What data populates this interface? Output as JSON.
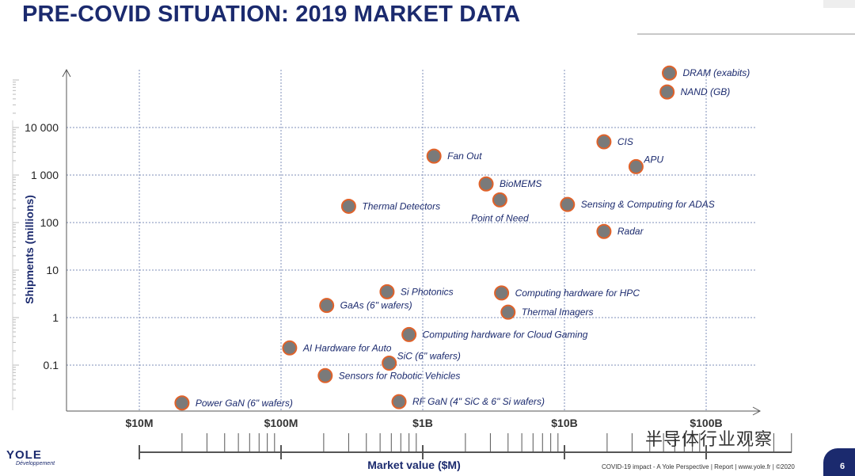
{
  "title": "PRE-COVID SITUATION: 2019 MARKET DATA",
  "footer": "COVID-19 impact - A Yole Perspective | Report | www.yole.fr | ©2020",
  "page_number": "6",
  "logo": {
    "name": "YOLE",
    "sub": "Développement"
  },
  "watermark": "半导体行业观察",
  "colors": {
    "title": "#1b2a6e",
    "marker_fill": "#7a7a7a",
    "marker_stroke": "#e0622a",
    "grid": "#7f8fb8"
  },
  "chart_data": {
    "type": "scatter",
    "x_scale": "log",
    "y_scale": "log",
    "xlabel": "Market value ($M)",
    "ylabel": "Shipments (millions)",
    "x_ticks": [
      {
        "value": 10,
        "label": "$10M"
      },
      {
        "value": 100,
        "label": "$100M"
      },
      {
        "value": 1000,
        "label": "$1B"
      },
      {
        "value": 10000,
        "label": "$10B"
      },
      {
        "value": 100000,
        "label": "$100B"
      }
    ],
    "y_ticks": [
      {
        "value": 0.1,
        "label": "0.1"
      },
      {
        "value": 1,
        "label": "1"
      },
      {
        "value": 10,
        "label": "10"
      },
      {
        "value": 100,
        "label": "100"
      },
      {
        "value": 1000,
        "label": "1 000"
      },
      {
        "value": 10000,
        "label": "10 000"
      }
    ],
    "points": [
      {
        "label": "DRAM (exabits)",
        "x": 55000,
        "y": 140000,
        "label_pos": "right"
      },
      {
        "label": "NAND (GB)",
        "x": 53000,
        "y": 56000,
        "label_pos": "right"
      },
      {
        "label": "CIS",
        "x": 19000,
        "y": 5000,
        "label_pos": "right"
      },
      {
        "label": "APU",
        "x": 32000,
        "y": 1500,
        "label_pos": "upright"
      },
      {
        "label": "Fan Out",
        "x": 1200,
        "y": 2500,
        "label_pos": "right"
      },
      {
        "label": "BioMEMS",
        "x": 2800,
        "y": 650,
        "label_pos": "right"
      },
      {
        "label": "Point of Need",
        "x": 3500,
        "y": 300,
        "label_pos": "below"
      },
      {
        "label": "Sensing & Computing for ADAS",
        "x": 10500,
        "y": 240,
        "label_pos": "right"
      },
      {
        "label": "Radar",
        "x": 19000,
        "y": 65,
        "label_pos": "right"
      },
      {
        "label": "Thermal Detectors",
        "x": 300,
        "y": 220,
        "label_pos": "right"
      },
      {
        "label": "Si Photonics",
        "x": 560,
        "y": 3.5,
        "label_pos": "right"
      },
      {
        "label": "GaAs (6\" wafers)",
        "x": 210,
        "y": 1.8,
        "label_pos": "right"
      },
      {
        "label": "Computing hardware for HPC",
        "x": 3600,
        "y": 3.3,
        "label_pos": "right"
      },
      {
        "label": "Thermal Imagers",
        "x": 4000,
        "y": 1.3,
        "label_pos": "right"
      },
      {
        "label": "Computing hardware for Cloud Gaming",
        "x": 800,
        "y": 0.44,
        "label_pos": "right"
      },
      {
        "label": "AI Hardware for Auto",
        "x": 115,
        "y": 0.23,
        "label_pos": "right"
      },
      {
        "label": "SiC (6\" wafers)",
        "x": 580,
        "y": 0.11,
        "label_pos": "upright"
      },
      {
        "label": "Sensors for Robotic Vehicles",
        "x": 205,
        "y": 0.06,
        "label_pos": "right"
      },
      {
        "label": "Power GaN (6\" wafers)",
        "x": 20,
        "y": 0.016,
        "label_pos": "right"
      },
      {
        "label": "RF GaN (4\" SiC & 6\" Si wafers)",
        "x": 680,
        "y": 0.017,
        "label_pos": "right"
      }
    ]
  }
}
